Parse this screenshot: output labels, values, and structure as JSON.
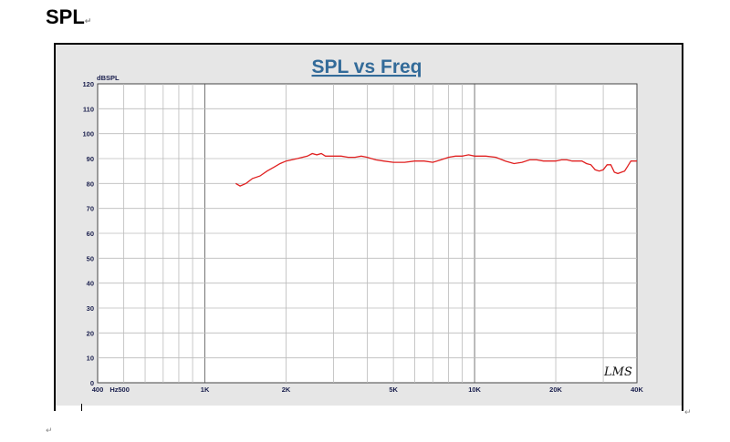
{
  "document": {
    "heading": "SPL",
    "para_mark": "↵"
  },
  "chart_data": {
    "type": "line",
    "title": "SPL vs Freq",
    "ylabel": "dBSPL",
    "xlabel": "Hz",
    "xscale": "log",
    "xlim": [
      400,
      40000
    ],
    "ylim": [
      0,
      120
    ],
    "grid": true,
    "logo": "LMS",
    "line_color": "#e02020",
    "x_tick_labels": [
      {
        "x": 400,
        "label": "400"
      },
      {
        "x": 500,
        "label": "500"
      },
      {
        "x": 1000,
        "label": "1K"
      },
      {
        "x": 2000,
        "label": "2K"
      },
      {
        "x": 5000,
        "label": "5K"
      },
      {
        "x": 10000,
        "label": "10K"
      },
      {
        "x": 20000,
        "label": "20K"
      },
      {
        "x": 40000,
        "label": "40K"
      }
    ],
    "y_tick_labels": [
      "0",
      "10",
      "20",
      "30",
      "40",
      "50",
      "60",
      "70",
      "80",
      "90",
      "100",
      "110",
      "120"
    ],
    "series": [
      {
        "x": [
          1300,
          1350,
          1420,
          1500,
          1600,
          1700,
          1800,
          1900,
          2000,
          2200,
          2400,
          2500,
          2600,
          2700,
          2800,
          3000,
          3200,
          3400,
          3600,
          3800,
          4000,
          4300,
          4600,
          5000,
          5500,
          6000,
          6500,
          7000,
          7500,
          8000,
          8500,
          9000,
          9500,
          10000,
          10500,
          11000,
          12000,
          13000,
          14000,
          15000,
          16000,
          17000,
          18000,
          19000,
          20000,
          21000,
          22000,
          23000,
          24000,
          25000,
          26000,
          27000,
          28000,
          29000,
          30000,
          31000,
          32000,
          33000,
          34000,
          35000,
          36000,
          37000,
          38000,
          39000,
          40000
        ],
        "y": [
          80,
          79,
          80,
          82,
          83,
          85,
          86.5,
          88,
          89,
          90,
          91,
          92,
          91.5,
          92,
          91,
          91,
          91,
          90.5,
          90.5,
          91,
          90.5,
          89.5,
          89,
          88.5,
          88.5,
          89,
          89,
          88.5,
          89.5,
          90.5,
          91,
          91,
          91.5,
          91,
          91,
          91,
          90.5,
          89,
          88,
          88.5,
          89.5,
          89.5,
          89,
          89,
          89,
          89.5,
          89.5,
          89,
          89,
          89,
          88,
          87.5,
          85.5,
          85,
          85.5,
          87.5,
          87.5,
          84.5,
          84,
          84.5,
          85,
          87,
          89,
          89,
          89
        ]
      }
    ]
  }
}
